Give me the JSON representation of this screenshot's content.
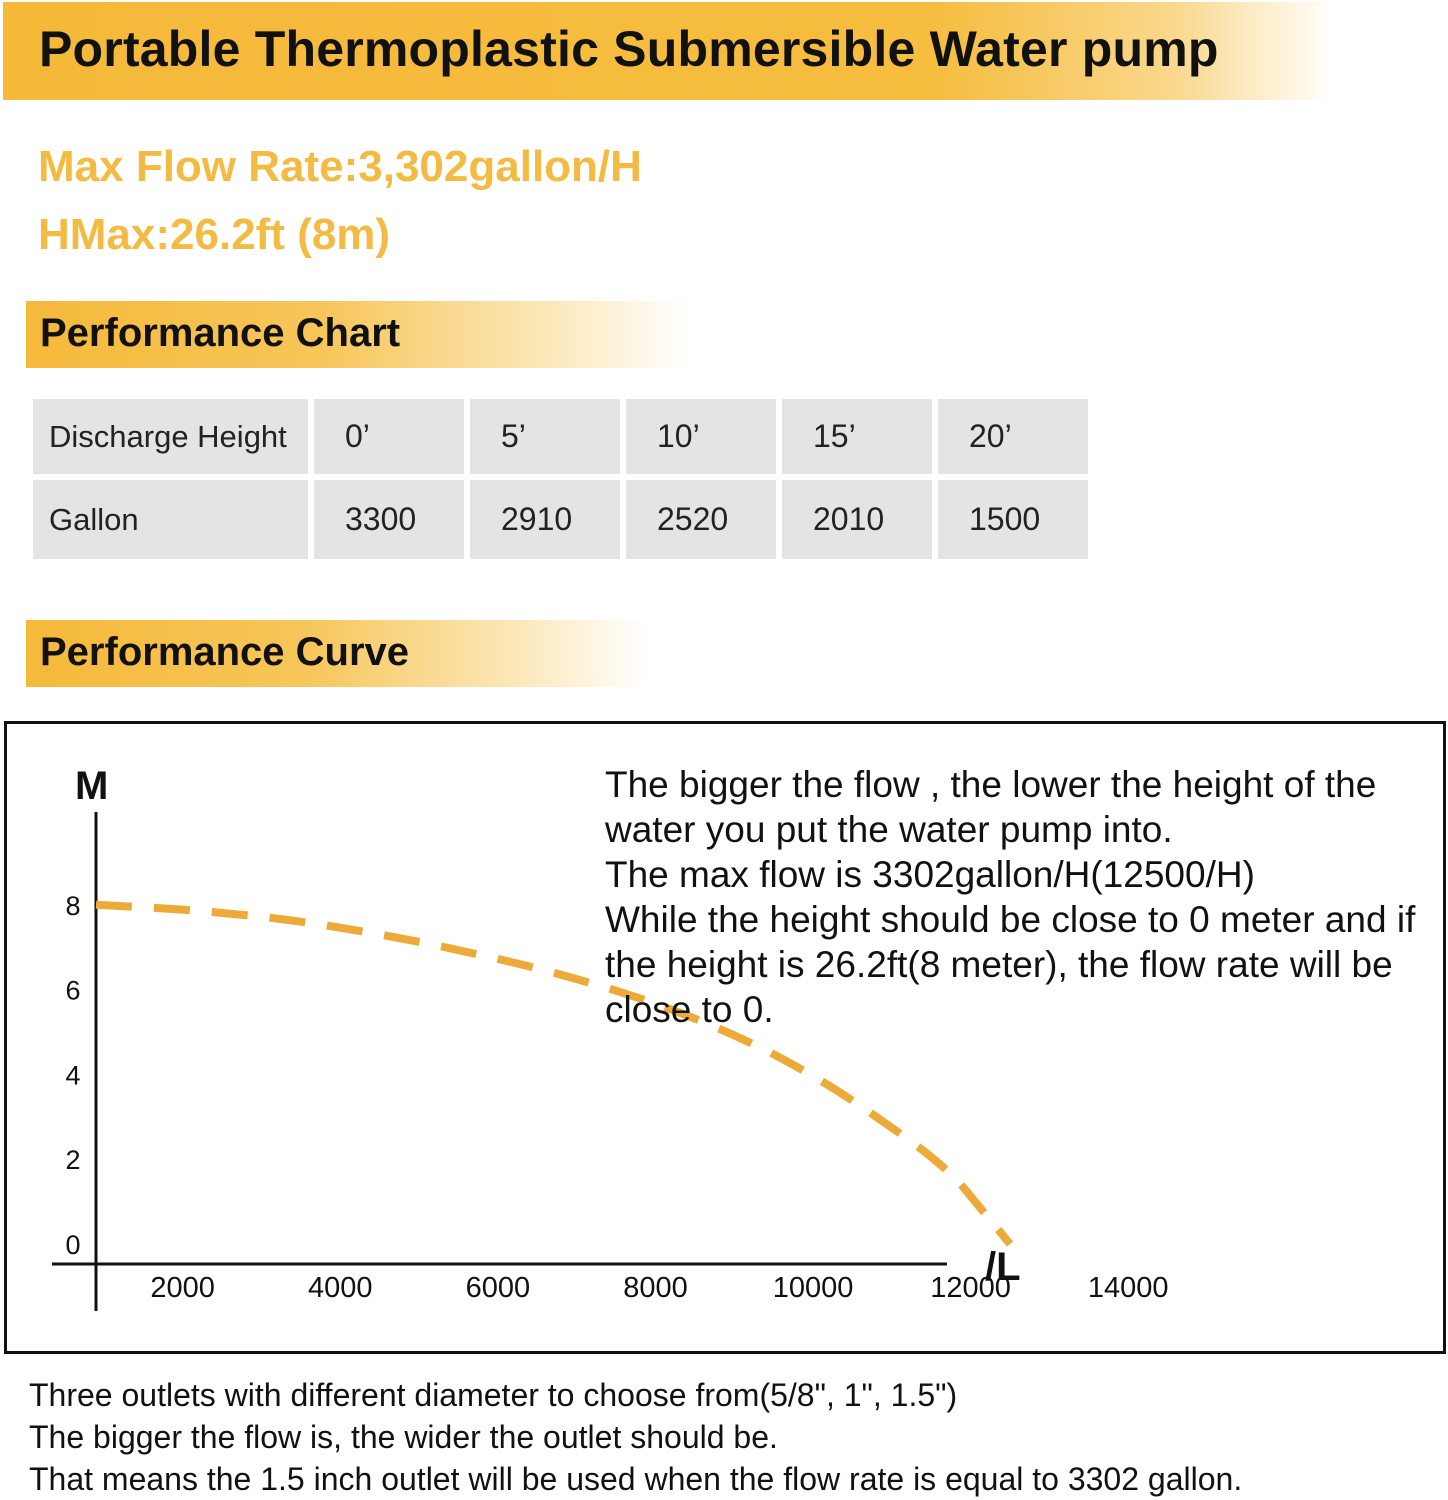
{
  "title": "Portable Thermoplastic Submersible Water pump",
  "specs": {
    "max_flow": "Max Flow Rate:3,302gallon/H",
    "hmax": "HMax:26.2ft (8m)"
  },
  "sections": {
    "chart": "Performance Chart",
    "curve": "Performance Curve"
  },
  "table": {
    "row1_label": "Discharge Height",
    "heights": [
      "0’",
      "5’",
      "10’",
      "15’",
      "20’"
    ],
    "row2_label": "Gallon",
    "gallons": [
      "3300",
      "2910",
      "2520",
      "2010",
      "1500"
    ]
  },
  "chart_data": {
    "type": "line",
    "ylabel": "M",
    "xlabel": "/L",
    "xlim": [
      900,
      17500
    ],
    "ylim": [
      0,
      8.5
    ],
    "x_ticks": [
      2000,
      4000,
      6000,
      8000,
      10000,
      12000,
      14000
    ],
    "y_ticks": [
      0,
      2,
      4,
      6,
      8
    ],
    "grid": false,
    "series": [
      {
        "x": [
          900,
          2100,
          3300,
          4500,
          5700,
          6900,
          8100,
          9200,
          10100,
          10800,
          11400,
          11800,
          12100,
          12500
        ],
        "y": [
          8.0,
          7.87,
          7.65,
          7.3,
          6.85,
          6.3,
          5.6,
          4.75,
          3.85,
          3.0,
          2.2,
          1.55,
          0.9,
          0.0
        ],
        "style": "dashed",
        "color": "#eeaa38"
      }
    ],
    "annotation": [
      "The bigger the flow , the lower the height of the water you put the water pump into.",
      "The max flow is 3302gallon/H(12500/H)",
      "While the height should be close to 0 meter and if the height is 26.2ft(8 meter), the flow rate will be close to 0."
    ]
  },
  "footnotes": [
    "Three outlets with different diameter to choose from(5/8\", 1\", 1.5\")",
    "The bigger the flow is, the wider the outlet should be.",
    "That means the 1.5 inch outlet will be used when the flow rate is equal to 3302 gallon."
  ]
}
